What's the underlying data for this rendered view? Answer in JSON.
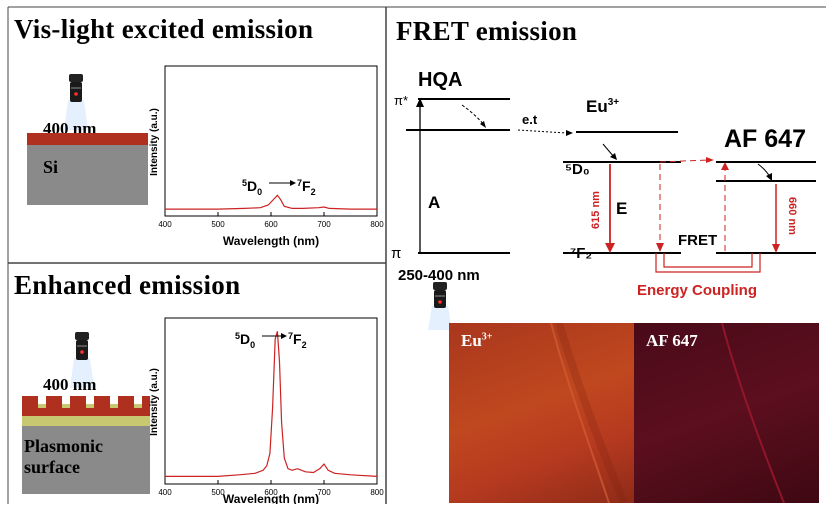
{
  "panels": {
    "top_left": {
      "title": "Vis-light excited emission",
      "wavelength": "400 nm",
      "substrate": "Si"
    },
    "bottom_left": {
      "title": "Enhanced emission",
      "wavelength": "400 nm",
      "substrate_line1": "Plasmonic",
      "substrate_line2": "surface"
    },
    "right": {
      "title": "FRET emission"
    }
  },
  "fret_diagram": {
    "donor": "HQA",
    "pi_star": "π*",
    "pi": "π",
    "absorption": "A",
    "excitation": "250-400 nm",
    "energy_transfer": "e.t",
    "eu": "Eu",
    "eu_sup": "3+",
    "eu_excited": "⁵D₀",
    "eu_ground": "⁷F₂",
    "emission": "E",
    "eu_line": "615 nm",
    "acceptor": "AF 647",
    "af_line": "660 nm",
    "fret": "FRET",
    "coupling": "Energy Coupling"
  },
  "photos": {
    "left": {
      "label": "Eu",
      "sup": "3+"
    },
    "right": {
      "label": "AF 647"
    }
  },
  "colors": {
    "red": "#cc2222",
    "laser_red": "#ff2a2a",
    "si_red": "#b03020",
    "gray": "#8a8a8a",
    "photo_left": "#b93d22",
    "photo_right": "#5a0d1c"
  },
  "chart_data": [
    {
      "type": "line",
      "xlabel": "Wavelength (nm)",
      "ylabel": "Intensity (a.u.)",
      "xlim": [
        400,
        800
      ],
      "xticks": [
        "400",
        "500",
        "600",
        "700",
        "800"
      ],
      "annotation": {
        "a": "5",
        "b": "D",
        "c": "0",
        "d": "7",
        "e": "F",
        "f": "2"
      },
      "x": [
        400,
        450,
        500,
        550,
        580,
        595,
        605,
        612,
        618,
        625,
        640,
        660,
        690,
        700,
        710,
        750,
        800
      ],
      "y": [
        0.05,
        0.05,
        0.05,
        0.055,
        0.06,
        0.08,
        0.12,
        0.15,
        0.12,
        0.07,
        0.055,
        0.055,
        0.06,
        0.065,
        0.055,
        0.05,
        0.05
      ]
    },
    {
      "type": "line",
      "xlabel": "Wavelength (nm)",
      "ylabel": "Intensity (a.u.)",
      "xlim": [
        400,
        800
      ],
      "xticks": [
        "400",
        "500",
        "600",
        "700",
        "800"
      ],
      "annotation": {
        "a": "5",
        "b": "D",
        "c": "0",
        "d": "7",
        "e": "F",
        "f": "2"
      },
      "x": [
        400,
        450,
        500,
        540,
        570,
        585,
        592,
        598,
        603,
        608,
        612,
        616,
        620,
        625,
        632,
        640,
        650,
        665,
        680,
        692,
        700,
        708,
        720,
        750,
        800
      ],
      "y": [
        0.05,
        0.05,
        0.05,
        0.06,
        0.07,
        0.09,
        0.12,
        0.2,
        0.5,
        0.95,
        1.0,
        0.8,
        0.4,
        0.17,
        0.1,
        0.09,
        0.1,
        0.08,
        0.075,
        0.1,
        0.13,
        0.09,
        0.07,
        0.06,
        0.05
      ]
    }
  ]
}
